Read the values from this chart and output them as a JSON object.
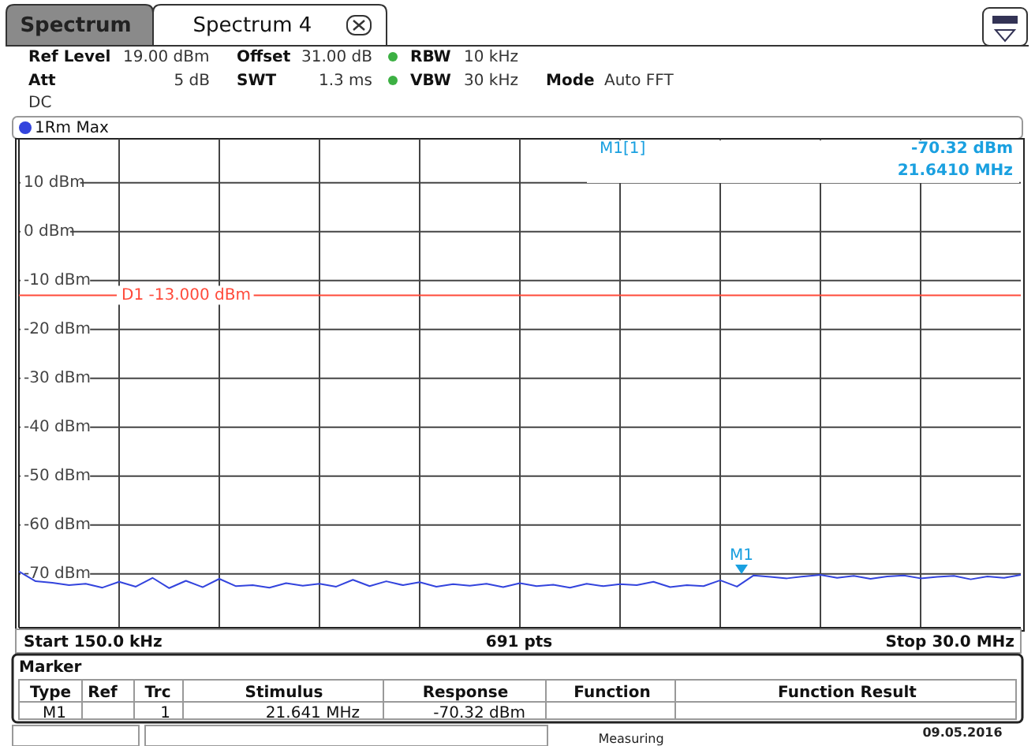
{
  "chart_data": {
    "type": "line",
    "title": "Spectrum 4",
    "categories": [
      null,
      null,
      null,
      null,
      null,
      null,
      null,
      null,
      null,
      null,
      null,
      null,
      null,
      null,
      null,
      null,
      null,
      null,
      null,
      null,
      null,
      null,
      null,
      null,
      null,
      null,
      null,
      null,
      null,
      null,
      null,
      null,
      null,
      null,
      null,
      null,
      null,
      null,
      null,
      null,
      null,
      null,
      null,
      null,
      null,
      null,
      null,
      null,
      null,
      null,
      null,
      null,
      null,
      null,
      null,
      null,
      null,
      null,
      null,
      null,
      null
    ],
    "series": [
      {
        "name": "1Rm Max",
        "color": "#3344dd",
        "values": [
          -69.5,
          -71.5,
          -71.8,
          -72.3,
          -72.0,
          -72.8,
          -71.6,
          -72.6,
          -70.8,
          -72.9,
          -71.4,
          -72.7,
          -71.0,
          -72.5,
          -72.3,
          -72.8,
          -71.9,
          -72.4,
          -72.0,
          -72.6,
          -71.2,
          -72.5,
          -71.5,
          -72.3,
          -71.7,
          -72.6,
          -72.1,
          -72.4,
          -72.0,
          -72.7,
          -71.9,
          -72.5,
          -72.2,
          -72.8,
          -72.0,
          -72.5,
          -72.1,
          -72.3,
          -71.6,
          -72.7,
          -72.3,
          -72.5,
          -71.3,
          -72.6,
          -70.3,
          -70.6,
          -70.9,
          -70.5,
          -70.2,
          -70.8,
          -70.4,
          -71.0,
          -70.5,
          -70.3,
          -70.9,
          -70.6,
          -70.4,
          -71.1,
          -70.5,
          -70.8,
          -70.2
        ]
      }
    ],
    "ylim": [
      -81,
      19
    ],
    "yticks": [
      {
        "value": -70,
        "label": "-70 dBm"
      },
      {
        "value": -60,
        "label": "-60 dBm"
      },
      {
        "value": -50,
        "label": "-50 dBm"
      },
      {
        "value": -40,
        "label": "-40 dBm"
      },
      {
        "value": -30,
        "label": "-30 dBm"
      },
      {
        "value": -20,
        "label": "-20 dBm"
      },
      {
        "value": -10,
        "label": "-10 dBm"
      },
      {
        "value": 0,
        "label": "0 dBm"
      },
      {
        "value": 10,
        "label": "10 dBm"
      }
    ],
    "grid": true,
    "legend": "top left",
    "marker": "none",
    "line_style": "solid",
    "ref_lines": [
      {
        "axis": "y",
        "value": -13,
        "label": "D1 -13.000 dBm",
        "color": "#ff4a3a"
      }
    ],
    "annotations": [
      "Spectrum",
      "Ref Level",
      "19.00 dBm",
      "Offset",
      "31.00 dB",
      "RBW",
      "10 kHz",
      "Att",
      "5 dB",
      "SWT",
      "1.3 ms",
      "VBW",
      "30 kHz",
      "Mode",
      "Auto FFT",
      "DC",
      "M1[1]",
      "-70.32 dBm",
      "21.6410 MHz",
      "691 pts",
      "Marker",
      "Type",
      "Ref",
      "Trc",
      "Stimulus",
      "Response",
      "Function",
      "Function Result",
      "M1",
      "1",
      "21.641 MHz",
      "-70.32 dBm",
      "Measuring",
      "09.05.2016",
      "Start 150.0 kHz",
      "Stop 30.0 MHz",
      "M1"
    ]
  }
}
